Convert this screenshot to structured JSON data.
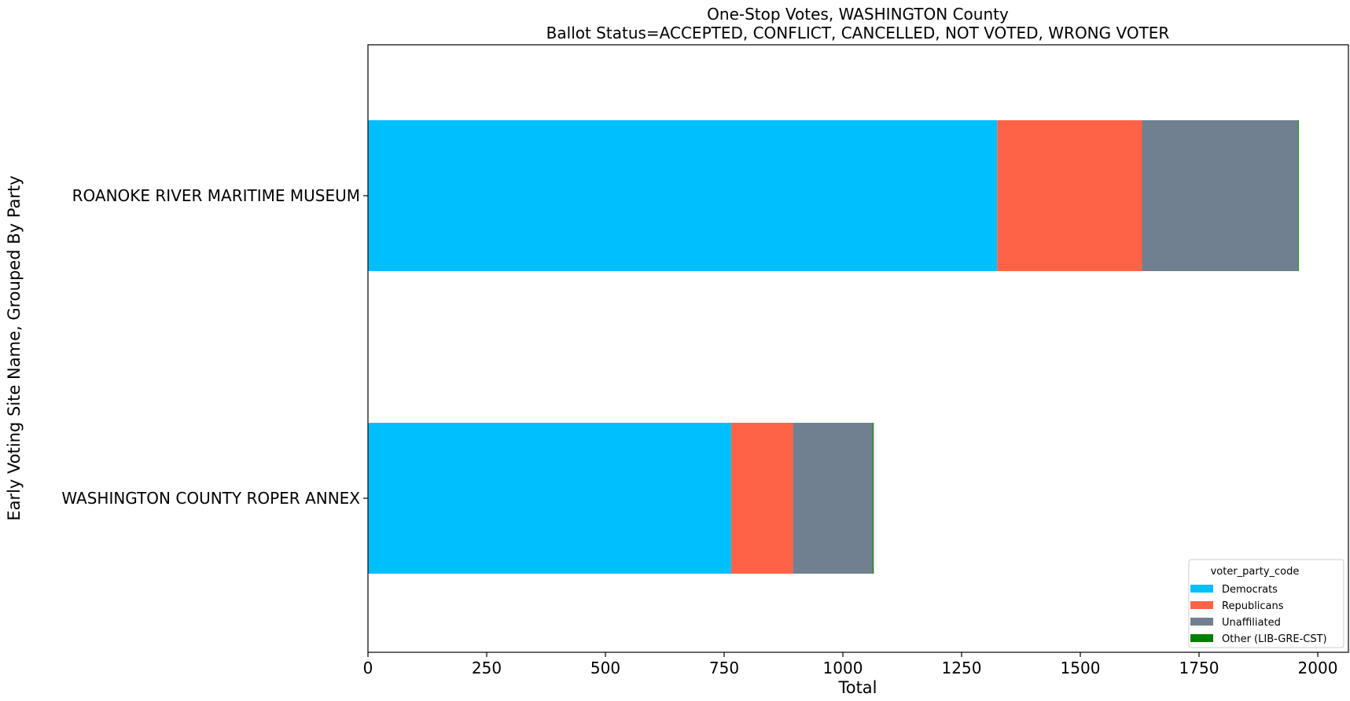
{
  "chart_data": {
    "type": "bar",
    "orientation": "horizontal",
    "stacked": true,
    "title": "One-Stop Votes, WASHINGTON County",
    "subtitle": "Ballot Status=ACCEPTED, CONFLICT, CANCELLED, NOT VOTED, WRONG VOTER",
    "xlabel": "Total",
    "ylabel": "Early Voting Site Name, Grouped By Party",
    "xlim": [
      0,
      2050
    ],
    "xticks": [
      "0",
      "250",
      "500",
      "750",
      "1000",
      "1250",
      "1500",
      "1750",
      "2000"
    ],
    "grid": false,
    "categories": [
      "ROANOKE RIVER MARITIME MUSEUM",
      "WASHINGTON COUNTY ROPER ANNEX"
    ],
    "series": [
      {
        "name": "Democrats",
        "color": "#00bfff",
        "values": [
          1325,
          765
        ]
      },
      {
        "name": "Republicans",
        "color": "#ff6347",
        "values": [
          305,
          130
        ]
      },
      {
        "name": "Unaffiliated",
        "color": "#708090",
        "values": [
          328,
          168
        ]
      },
      {
        "name": "Other (LIB-GRE-CST)",
        "color": "#008000",
        "values": [
          2,
          2
        ]
      }
    ],
    "legend": {
      "title": "voter_party_code",
      "placement": "lower-right"
    }
  }
}
